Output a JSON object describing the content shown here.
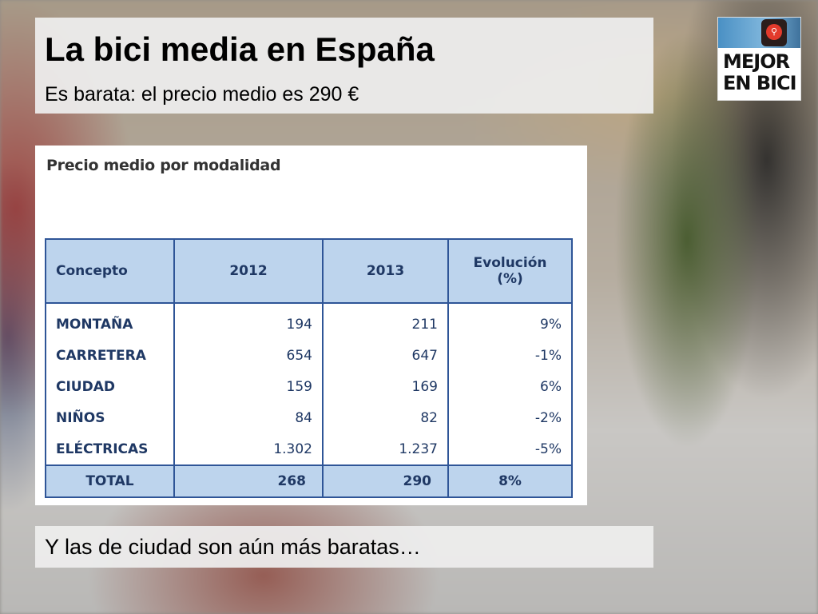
{
  "slide": {
    "title": "La bici media en España",
    "subtitle": "Es barata: el precio medio es 290 €",
    "caption": "Y las de ciudad son aún más baratas…"
  },
  "logo": {
    "line1": "MEJOR",
    "line2": "EN BICI",
    "icon": "bicycle-traffic-light-icon",
    "colors": {
      "light": "#e23a2c",
      "photo": "#4a90c4"
    }
  },
  "table": {
    "heading": "Precio medio por modalidad",
    "columns": [
      "Concepto",
      "2012",
      "2013",
      "Evolución (%)"
    ],
    "rows": [
      {
        "concepto": "MONTAÑA",
        "y2012": "194",
        "y2013": "211",
        "evolucion": "9%"
      },
      {
        "concepto": "CARRETERA",
        "y2012": "654",
        "y2013": "647",
        "evolucion": "-1%"
      },
      {
        "concepto": "CIUDAD",
        "y2012": "159",
        "y2013": "169",
        "evolucion": "6%"
      },
      {
        "concepto": "NIÑOS",
        "y2012": "84",
        "y2013": "82",
        "evolucion": "-2%"
      },
      {
        "concepto": "ELÉCTRICAS",
        "y2012": "1.302",
        "y2013": "1.237",
        "evolucion": "-5%"
      }
    ],
    "total": {
      "concepto": "TOTAL",
      "y2012": "268",
      "y2013": "290",
      "evolucion": "8%"
    },
    "colors": {
      "header_fill": "#bdd4ed",
      "border": "#2f5597",
      "text": "#1f3864"
    }
  }
}
